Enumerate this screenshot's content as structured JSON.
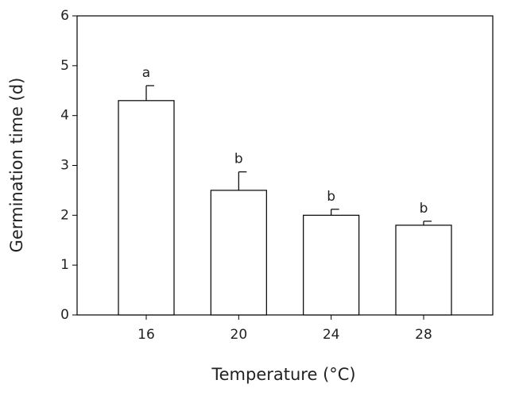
{
  "chart_data": {
    "type": "bar",
    "x_label": "Temperature (°C)",
    "y_label": "Germination time (d)",
    "categories": [
      "16",
      "20",
      "24",
      "28"
    ],
    "values": [
      4.3,
      2.5,
      2.0,
      1.8
    ],
    "errors": [
      0.3,
      0.37,
      0.12,
      0.08
    ],
    "annotations": [
      "a",
      "b",
      "b",
      "b"
    ],
    "color": "#ffffff",
    "ylim": [
      0,
      6
    ],
    "yticks": [
      0,
      1,
      2,
      3,
      4,
      5,
      6
    ]
  }
}
